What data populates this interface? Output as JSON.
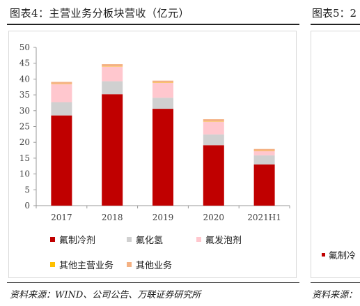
{
  "figure": {
    "title": "图表4：主营业务分板块营收（亿元）",
    "source": "资料来源：WIND、公司公告、万联证券研究所"
  },
  "next_figure": {
    "title_fragment": "图表5：2",
    "legend_fragment": "氟制冷",
    "source_fragment": "资料来源："
  },
  "chart_data": {
    "type": "bar",
    "stacked": true,
    "categories": [
      "2017",
      "2018",
      "2019",
      "2020",
      "2021H1"
    ],
    "ylim": [
      0,
      50
    ],
    "yticks": [
      0,
      5,
      10,
      15,
      20,
      25,
      30,
      35,
      40,
      45,
      50
    ],
    "grid": false,
    "legend_position": "bottom",
    "series": [
      {
        "name": "氟制冷剂",
        "color": "#c00000",
        "values": [
          28.5,
          35.2,
          30.6,
          19.1,
          13.0
        ]
      },
      {
        "name": "氟化氢",
        "color": "#d0d0d0",
        "values": [
          4.2,
          4.1,
          3.5,
          3.4,
          2.9
        ]
      },
      {
        "name": "氟发泡剂",
        "color": "#ffc7ce",
        "values": [
          5.7,
          4.6,
          4.7,
          4.0,
          1.4
        ]
      },
      {
        "name": "其他主营业务",
        "color": "#ffc000",
        "values": [
          0.1,
          0.1,
          0.1,
          0.1,
          0.1
        ]
      },
      {
        "name": "其他业务",
        "color": "#f4b183",
        "values": [
          0.6,
          0.7,
          0.6,
          0.7,
          0.5
        ]
      }
    ]
  }
}
